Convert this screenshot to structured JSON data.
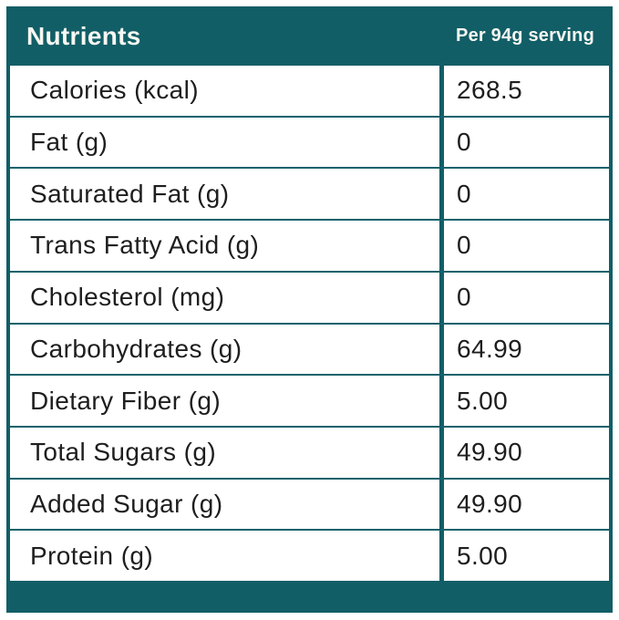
{
  "header": {
    "title": "Nutrients",
    "serving_label": "Per 94g serving"
  },
  "table": {
    "columns": [
      "Nutrients",
      "Per 94g serving"
    ],
    "rows": [
      {
        "nutrient": "Calories (kcal)",
        "value": "268.5"
      },
      {
        "nutrient": "Fat (g)",
        "value": "0"
      },
      {
        "nutrient": "Saturated Fat (g)",
        "value": "0"
      },
      {
        "nutrient": "Trans Fatty Acid (g)",
        "value": "0"
      },
      {
        "nutrient": "Cholesterol (mg)",
        "value": "0"
      },
      {
        "nutrient": "Carbohydrates (g)",
        "value": "64.99"
      },
      {
        "nutrient": "Dietary Fiber (g)",
        "value": "5.00"
      },
      {
        "nutrient": "Total Sugars (g)",
        "value": "49.90"
      },
      {
        "nutrient": "Added Sugar (g)",
        "value": "49.90"
      },
      {
        "nutrient": "Protein (g)",
        "value": "5.00"
      }
    ]
  },
  "colors": {
    "teal": "#115E67",
    "row_border": "#14626C",
    "body_text": "#1E1E1E",
    "header_text": "#F7F7F1",
    "page_background": "#FFFFFF"
  }
}
